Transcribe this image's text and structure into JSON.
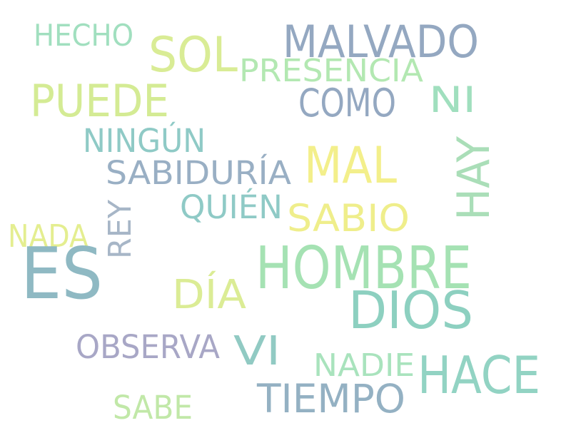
{
  "words": [
    {
      "text": "HECHO",
      "color": "#a1dfbf"
    },
    {
      "text": "SOL",
      "color": "#d9ec95"
    },
    {
      "text": "MALVADO",
      "color": "#94a8c1"
    },
    {
      "text": "PRESENCIA",
      "color": "#b3e8b2"
    },
    {
      "text": "PUEDE",
      "color": "#d4eb94"
    },
    {
      "text": "COMO",
      "color": "#94a8c1"
    },
    {
      "text": "NI",
      "color": "#a0dfbe"
    },
    {
      "text": "NINGÚN",
      "color": "#8fcac6"
    },
    {
      "text": "MAL",
      "color": "#f3ef8b"
    },
    {
      "text": "SABIDURÍA",
      "color": "#99afc4"
    },
    {
      "text": "HAY",
      "color": "#aadeb8"
    },
    {
      "text": "QUIÉN",
      "color": "#8fcac6"
    },
    {
      "text": "SABIO",
      "color": "#efee8b"
    },
    {
      "text": "REY",
      "color": "#a7b6c7"
    },
    {
      "text": "NADA",
      "color": "#e4ee90"
    },
    {
      "text": "ES",
      "color": "#8fb9c3"
    },
    {
      "text": "HOMBRE",
      "color": "#a5e2b3"
    },
    {
      "text": "DÍA",
      "color": "#dbec95"
    },
    {
      "text": "DIOS",
      "color": "#8dd0c0"
    },
    {
      "text": "OBSERVA",
      "color": "#a8a7c6"
    },
    {
      "text": "VI",
      "color": "#91cac3"
    },
    {
      "text": "NADIE",
      "color": "#a9e3bd"
    },
    {
      "text": "HACE",
      "color": "#92d3c3"
    },
    {
      "text": "TIEMPO",
      "color": "#94b1c3"
    },
    {
      "text": "SABE",
      "color": "#c1e8a8"
    }
  ]
}
